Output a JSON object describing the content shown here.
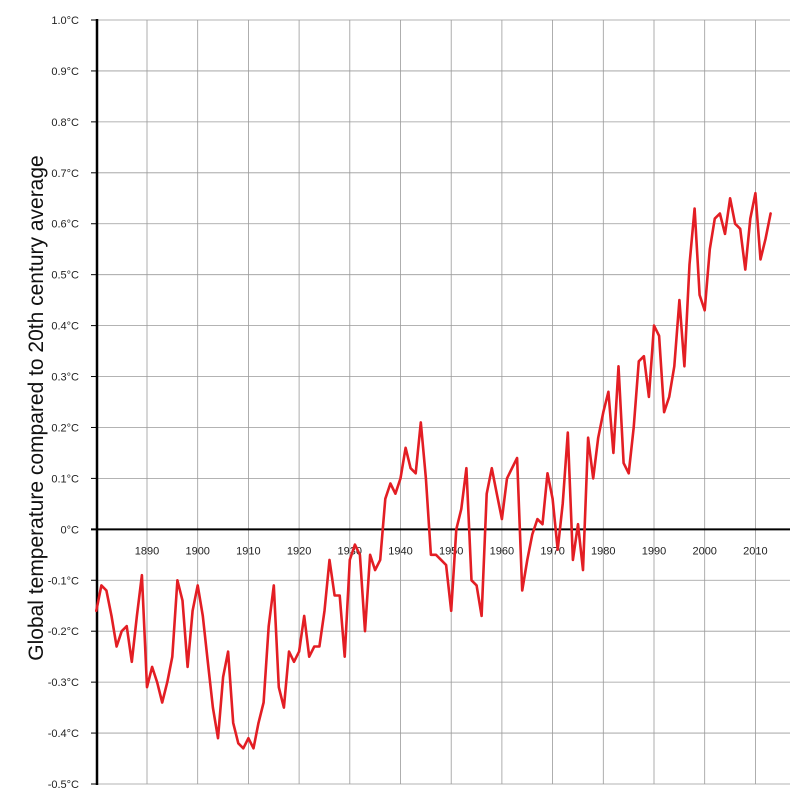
{
  "chart_data": {
    "type": "line",
    "title": "",
    "xlabel": "",
    "ylabel": "Global temperature compared to 20th century average",
    "xlim": [
      1880,
      2014
    ],
    "ylim": [
      -0.5,
      1.0
    ],
    "grid": true,
    "x_ticks": [
      1890,
      1900,
      1910,
      1920,
      1930,
      1940,
      1950,
      1960,
      1970,
      1980,
      1990,
      2000,
      2010
    ],
    "x_tick_labels": [
      "1890",
      "1900",
      "1910",
      "1920",
      "1930",
      "1940",
      "1950",
      "1960",
      "1970",
      "1980",
      "1990",
      "2000",
      "2010"
    ],
    "y_ticks": [
      -0.5,
      -0.4,
      -0.3,
      -0.2,
      -0.1,
      0,
      0.1,
      0.2,
      0.3,
      0.4,
      0.5,
      0.6,
      0.7,
      0.8,
      0.9,
      1.0
    ],
    "y_tick_labels": [
      "-0.5°C",
      "-0.4°C",
      "-0.3°C",
      "-0.2°C",
      "-0.1°C",
      "0°C",
      "0.1°C",
      "0.2°C",
      "0.3°C",
      "0.4°C",
      "0.5°C",
      "0.6°C",
      "0.7°C",
      "0.8°C",
      "0.9°C",
      "1.0°C"
    ],
    "series": [
      {
        "color": "#e31e24",
        "x": [
          1880,
          1881,
          1882,
          1883,
          1884,
          1885,
          1886,
          1887,
          1888,
          1889,
          1890,
          1891,
          1892,
          1893,
          1894,
          1895,
          1896,
          1897,
          1898,
          1899,
          1900,
          1901,
          1902,
          1903,
          1904,
          1905,
          1906,
          1907,
          1908,
          1909,
          1910,
          1911,
          1912,
          1913,
          1914,
          1915,
          1916,
          1917,
          1918,
          1919,
          1920,
          1921,
          1922,
          1923,
          1924,
          1925,
          1926,
          1927,
          1928,
          1929,
          1930,
          1931,
          1932,
          1933,
          1934,
          1935,
          1936,
          1937,
          1938,
          1939,
          1940,
          1941,
          1942,
          1943,
          1944,
          1945,
          1946,
          1947,
          1948,
          1949,
          1950,
          1951,
          1952,
          1953,
          1954,
          1955,
          1956,
          1957,
          1958,
          1959,
          1960,
          1961,
          1962,
          1963,
          1964,
          1965,
          1966,
          1967,
          1968,
          1969,
          1970,
          1971,
          1972,
          1973,
          1974,
          1975,
          1976,
          1977,
          1978,
          1979,
          1980,
          1981,
          1982,
          1983,
          1984,
          1985,
          1986,
          1987,
          1988,
          1989,
          1990,
          1991,
          1992,
          1993,
          1994,
          1995,
          1996,
          1997,
          1998,
          1999,
          2000,
          2001,
          2002,
          2003,
          2004,
          2005,
          2006,
          2007,
          2008,
          2009,
          2010,
          2011,
          2012,
          2013
        ],
        "y": [
          -0.16,
          -0.11,
          -0.12,
          -0.17,
          -0.23,
          -0.2,
          -0.19,
          -0.26,
          -0.17,
          -0.09,
          -0.31,
          -0.27,
          -0.3,
          -0.34,
          -0.3,
          -0.25,
          -0.1,
          -0.14,
          -0.27,
          -0.16,
          -0.11,
          -0.17,
          -0.26,
          -0.35,
          -0.41,
          -0.29,
          -0.24,
          -0.38,
          -0.42,
          -0.43,
          -0.41,
          -0.43,
          -0.38,
          -0.34,
          -0.19,
          -0.11,
          -0.31,
          -0.35,
          -0.24,
          -0.26,
          -0.24,
          -0.17,
          -0.25,
          -0.23,
          -0.23,
          -0.16,
          -0.06,
          -0.13,
          -0.13,
          -0.25,
          -0.06,
          -0.03,
          -0.05,
          -0.2,
          -0.05,
          -0.08,
          -0.06,
          0.06,
          0.09,
          0.07,
          0.1,
          0.16,
          0.12,
          0.11,
          0.21,
          0.1,
          -0.05,
          -0.05,
          -0.06,
          -0.07,
          -0.16,
          0.0,
          0.04,
          0.12,
          -0.1,
          -0.11,
          -0.17,
          0.07,
          0.12,
          0.07,
          0.02,
          0.1,
          0.12,
          0.14,
          -0.12,
          -0.06,
          -0.01,
          0.02,
          0.01,
          0.11,
          0.06,
          -0.04,
          0.05,
          0.19,
          -0.06,
          0.01,
          -0.08,
          0.18,
          0.1,
          0.18,
          0.23,
          0.27,
          0.15,
          0.32,
          0.13,
          0.11,
          0.2,
          0.33,
          0.34,
          0.26,
          0.4,
          0.38,
          0.23,
          0.26,
          0.32,
          0.45,
          0.32,
          0.52,
          0.63,
          0.46,
          0.43,
          0.55,
          0.61,
          0.62,
          0.58,
          0.65,
          0.6,
          0.59,
          0.51,
          0.61,
          0.66,
          0.53,
          0.57,
          0.62
        ]
      }
    ]
  }
}
